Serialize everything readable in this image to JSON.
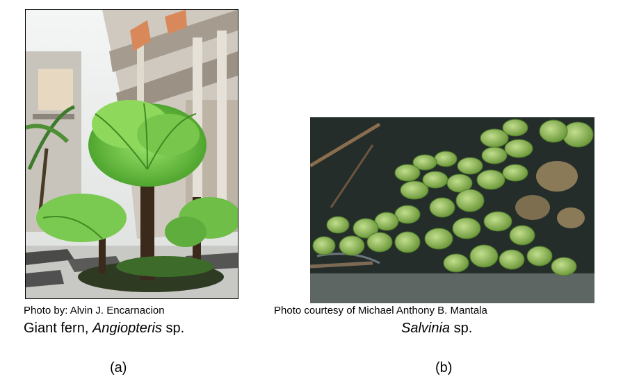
{
  "figure_a": {
    "credit": "Photo by: Alvin J. Encarnacion",
    "caption_prefix": "Giant fern, ",
    "caption_genus": "Angiopteris",
    "caption_suffix": " sp.",
    "label": "(a)"
  },
  "figure_b": {
    "credit": "Photo courtesy of Michael Anthony B. Mantala",
    "caption_genus": "Salvinia",
    "caption_suffix": " sp.",
    "label": "(b)"
  }
}
